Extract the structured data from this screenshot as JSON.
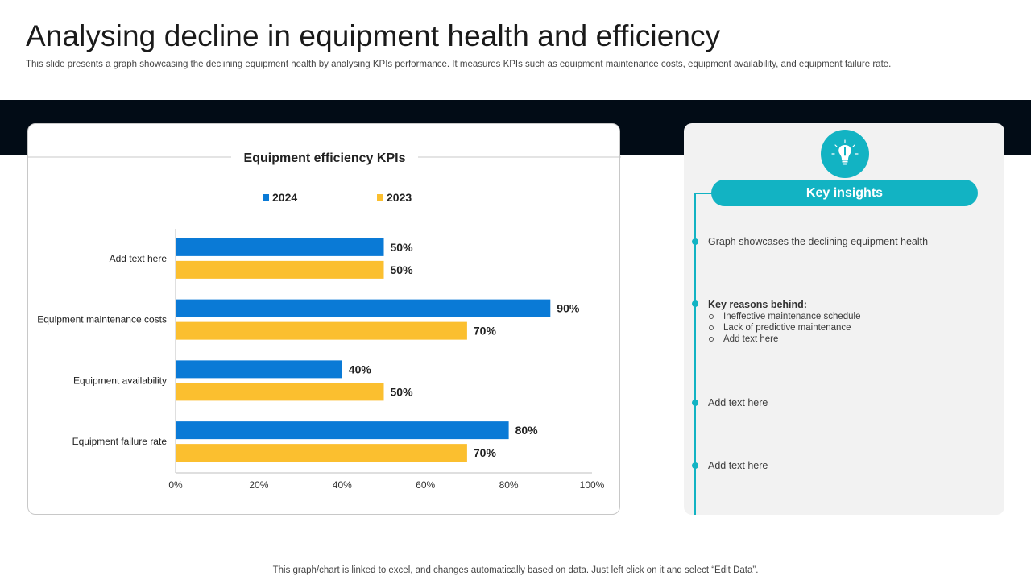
{
  "page": {
    "title": "Analysing decline in equipment health and efficiency",
    "subtitle": "This slide presents a graph showcasing the declining equipment health by analysing KPIs performance. It measures KPIs such as equipment maintenance costs, equipment availability, and equipment failure rate.",
    "footer": "This graph/chart is linked to excel, and changes automatically based on data. Just left click on it and select “Edit Data”."
  },
  "colors": {
    "series_2024": "#0a7ad6",
    "series_2023": "#fbbf2f",
    "accent": "#12b3c3",
    "band": "#020c16"
  },
  "chart_data": {
    "type": "bar",
    "orientation": "horizontal",
    "title": "Equipment efficiency KPIs",
    "categories": [
      "Add text here",
      "Equipment maintenance costs",
      "Equipment availability",
      "Equipment failure rate"
    ],
    "series": [
      {
        "name": "2024",
        "values": [
          50,
          90,
          40,
          80
        ]
      },
      {
        "name": "2023",
        "values": [
          50,
          70,
          50,
          70
        ]
      }
    ],
    "xlim": [
      0,
      100
    ],
    "xticks": [
      "0%",
      "20%",
      "40%",
      "60%",
      "80%",
      "100%"
    ],
    "value_suffix": "%",
    "legend_position": "top",
    "xlabel": "",
    "ylabel": ""
  },
  "insights": {
    "header": "Key insights",
    "icon": "lightbulb-icon",
    "items": [
      {
        "text": "Graph showcases the declining equipment health"
      },
      {
        "heading": "Key reasons behind:",
        "sub": [
          "Ineffective maintenance schedule",
          "Lack of predictive maintenance",
          "Add text here"
        ]
      },
      {
        "text": "Add text here"
      },
      {
        "text": "Add text here"
      }
    ]
  }
}
